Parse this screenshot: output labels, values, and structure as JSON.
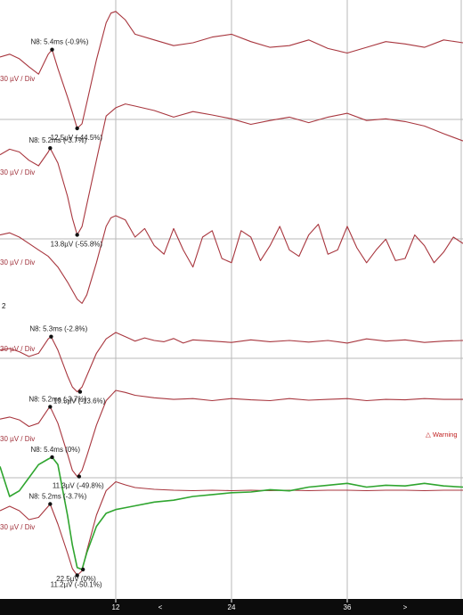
{
  "chart_data": {
    "type": "line",
    "x_ticks": [
      "12",
      "24",
      "36"
    ],
    "xlim": [
      0,
      48
    ],
    "scale_label": "30 µV / Div",
    "channel_marker": "2",
    "warning_text": "△ Warning",
    "nav_arrows": [
      "<",
      ">"
    ],
    "colors": {
      "trace": "#a8363e",
      "trace_green": "#2fa52f",
      "grid": "#b9b9b9",
      "axis_bar": "#0c0c0c"
    },
    "traces": [
      {
        "color": "#a8363e",
        "x": [
          0,
          1,
          2,
          3,
          4,
          5,
          5.4,
          6,
          7,
          7.5,
          8,
          8.5,
          9,
          10,
          11,
          11.5,
          12,
          13,
          14,
          16,
          18,
          20,
          22,
          24,
          26,
          28,
          30,
          32,
          34,
          36,
          38,
          40,
          42,
          44,
          46,
          48
        ],
        "y": [
          0.25,
          0.3,
          0.22,
          0.08,
          -0.05,
          0.3,
          0.38,
          0.05,
          -0.45,
          -0.72,
          -1.0,
          -0.92,
          -0.55,
          0.2,
          0.85,
          1.02,
          1.05,
          0.9,
          0.65,
          0.55,
          0.45,
          0.5,
          0.6,
          0.65,
          0.52,
          0.42,
          0.45,
          0.55,
          0.4,
          0.32,
          0.42,
          0.52,
          0.48,
          0.42,
          0.55,
          0.5
        ],
        "peaks": [
          {
            "label": "N8: 5.4ms (-0.9%)",
            "x": 5.4,
            "y": 0.38
          },
          {
            "label": "12.5µV (-44.5%)",
            "x": 8.0,
            "y": -1.0
          }
        ]
      },
      {
        "color": "#a8363e",
        "x": [
          0,
          1,
          2,
          3,
          4,
          5,
          5.2,
          6,
          7,
          7.5,
          8,
          8.5,
          9,
          10,
          11,
          12,
          13,
          14,
          16,
          18,
          20,
          22,
          24,
          26,
          28,
          30,
          32,
          34,
          36,
          38,
          40,
          42,
          44,
          46,
          48
        ],
        "y": [
          0.2,
          0.3,
          0.25,
          0.1,
          0.0,
          0.25,
          0.32,
          0.05,
          -0.55,
          -0.95,
          -1.25,
          -1.1,
          -0.7,
          0.1,
          0.9,
          1.05,
          1.12,
          1.08,
          1.0,
          0.88,
          0.98,
          0.92,
          0.85,
          0.75,
          0.82,
          0.88,
          0.78,
          0.88,
          0.95,
          0.82,
          0.85,
          0.8,
          0.72,
          0.58,
          0.45
        ],
        "peaks": [
          {
            "label": "N8: 5.2ms (-3.7%)",
            "x": 5.2,
            "y": 0.32
          },
          {
            "label": "13.8µV (-55.8%)",
            "x": 8.0,
            "y": -1.25
          }
        ]
      },
      {
        "color": "#a8363e",
        "x": [
          0,
          1,
          2,
          3,
          4,
          5,
          6,
          7,
          8,
          8.5,
          9,
          10,
          11,
          11.5,
          12,
          13,
          14,
          15,
          16,
          17,
          18,
          19,
          20,
          21,
          22,
          23,
          24,
          25,
          26,
          27,
          28,
          29,
          30,
          31,
          32,
          33,
          34,
          35,
          36,
          37,
          38,
          39,
          40,
          41,
          42,
          43,
          44,
          45,
          46,
          47,
          48
        ],
        "y": [
          0.55,
          0.6,
          0.5,
          0.35,
          0.2,
          0.05,
          -0.2,
          -0.55,
          -0.95,
          -1.05,
          -0.85,
          -0.1,
          0.75,
          0.95,
          1.0,
          0.9,
          0.5,
          0.7,
          0.3,
          0.1,
          0.7,
          0.2,
          -0.2,
          0.5,
          0.65,
          0.0,
          -0.1,
          0.65,
          0.5,
          -0.05,
          0.3,
          0.75,
          0.2,
          0.05,
          0.55,
          0.8,
          0.1,
          0.2,
          0.75,
          0.25,
          -0.1,
          0.2,
          0.45,
          -0.05,
          0.0,
          0.55,
          0.3,
          -0.1,
          0.15,
          0.5,
          0.35
        ],
        "peaks": []
      },
      {
        "color": "#a8363e",
        "x": [
          0,
          1,
          2,
          3,
          4,
          5,
          5.3,
          6,
          7,
          7.5,
          8,
          8.5,
          9,
          10,
          11,
          12,
          13,
          14,
          15,
          16,
          17,
          18,
          19,
          20,
          22,
          24,
          26,
          28,
          30,
          32,
          34,
          36,
          38,
          40,
          42,
          44,
          46,
          48
        ],
        "y": [
          0.2,
          0.25,
          0.15,
          0.0,
          0.1,
          0.55,
          0.62,
          0.2,
          -0.6,
          -0.95,
          -1.1,
          -0.95,
          -0.6,
          0.1,
          0.55,
          0.75,
          0.62,
          0.48,
          0.58,
          0.5,
          0.46,
          0.56,
          0.42,
          0.52,
          0.48,
          0.44,
          0.52,
          0.46,
          0.5,
          0.45,
          0.5,
          0.42,
          0.55,
          0.48,
          0.52,
          0.44,
          0.48,
          0.5
        ],
        "peaks": [
          {
            "label": "N8: 5.3ms (-2.8%)",
            "x": 5.3,
            "y": 0.62
          },
          {
            "label": "19.5µV (-13.6%)",
            "x": 8.3,
            "y": -1.1
          }
        ]
      },
      {
        "color": "#a8363e",
        "x": [
          0,
          1,
          2,
          3,
          4,
          5,
          5.2,
          6,
          7,
          7.5,
          8,
          8.5,
          9,
          10,
          11,
          12,
          13,
          14,
          16,
          18,
          20,
          22,
          24,
          26,
          28,
          30,
          32,
          34,
          36,
          38,
          40,
          42,
          44,
          46,
          48
        ],
        "y": [
          0.3,
          0.35,
          0.28,
          0.12,
          0.2,
          0.55,
          0.6,
          0.2,
          -0.55,
          -0.95,
          -1.1,
          -0.95,
          -0.6,
          0.15,
          0.75,
          1.0,
          0.95,
          0.88,
          0.82,
          0.78,
          0.8,
          0.75,
          0.8,
          0.77,
          0.75,
          0.8,
          0.76,
          0.78,
          0.8,
          0.75,
          0.78,
          0.77,
          0.8,
          0.78,
          0.78
        ],
        "peaks": [
          {
            "label": "N8: 5.2ms (-3.7%)",
            "x": 5.2,
            "y": 0.6
          },
          {
            "label": "11.3µV (-49.8%)",
            "x": 8.2,
            "y": -1.1
          }
        ]
      },
      {
        "color": "#a8363e",
        "x": [
          0,
          1,
          2,
          3,
          4,
          5,
          5.2,
          6,
          7,
          7.5,
          8,
          8.5,
          9,
          10,
          11,
          12,
          13,
          14,
          16,
          18,
          20,
          22,
          24,
          26,
          28,
          30,
          32,
          34,
          36,
          38,
          40,
          42,
          44,
          46,
          48
        ],
        "y": [
          0.3,
          0.4,
          0.3,
          0.1,
          0.15,
          0.4,
          0.45,
          0.0,
          -0.65,
          -1.0,
          -1.15,
          -1.05,
          -0.6,
          0.2,
          0.75,
          0.95,
          0.88,
          0.82,
          0.78,
          0.76,
          0.75,
          0.76,
          0.75,
          0.76,
          0.75,
          0.76,
          0.75,
          0.76,
          0.76,
          0.75,
          0.76,
          0.76,
          0.75,
          0.76,
          0.76
        ],
        "peaks": [
          {
            "label": "N8: 5.2ms (-3.7%)",
            "x": 5.2,
            "y": 0.45
          },
          {
            "label": "11.2µV (-50.1%)",
            "x": 8.0,
            "y": -1.15
          }
        ]
      },
      {
        "color": "#2fa52f",
        "x": [
          0,
          1,
          2,
          3,
          4,
          5,
          5.4,
          6,
          7,
          7.5,
          8,
          8.5,
          9,
          10,
          11,
          12,
          13,
          14,
          16,
          18,
          20,
          22,
          24,
          26,
          28,
          30,
          32,
          34,
          36,
          38,
          40,
          42,
          44,
          46,
          48
        ],
        "y": [
          1.3,
          0.5,
          0.65,
          1.0,
          1.35,
          1.5,
          1.55,
          1.35,
          0.0,
          -0.8,
          -1.4,
          -1.45,
          -1.0,
          -0.3,
          0.05,
          0.15,
          0.2,
          0.25,
          0.35,
          0.4,
          0.5,
          0.55,
          0.6,
          0.62,
          0.68,
          0.65,
          0.75,
          0.8,
          0.85,
          0.75,
          0.8,
          0.78,
          0.85,
          0.78,
          0.75
        ],
        "peaks": [
          {
            "label": "N8: 5.4ms (0%)",
            "x": 5.4,
            "y": 1.55
          },
          {
            "label": "22.5µV (0%)",
            "x": 8.6,
            "y": -1.45
          }
        ]
      }
    ]
  }
}
